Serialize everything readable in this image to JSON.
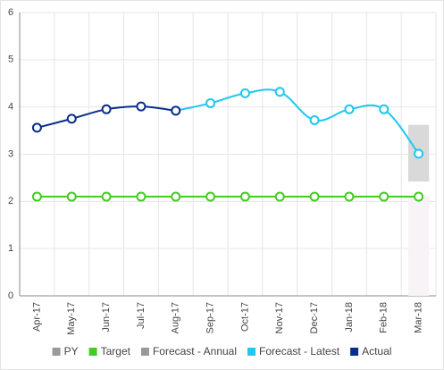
{
  "chart_data": {
    "type": "line",
    "categories": [
      "Apr-17",
      "May-17",
      "Jun-17",
      "Jul-17",
      "Aug-17",
      "Sep-17",
      "Oct-17",
      "Nov-17",
      "Dec-17",
      "Jan-18",
      "Feb-18",
      "Mar-18"
    ],
    "ylim": [
      0,
      6
    ],
    "yticks": [
      0,
      1,
      2,
      3,
      4,
      5,
      6
    ],
    "grid": true,
    "legend": "bottom",
    "series": [
      {
        "name": "PY",
        "color": "#999999",
        "bar_color": "#f7f3f7",
        "kind": "bar",
        "values": [
          null,
          null,
          null,
          null,
          null,
          null,
          null,
          null,
          null,
          null,
          null,
          2.1
        ]
      },
      {
        "name": "Target",
        "color": "#44cc22",
        "kind": "line",
        "values": [
          2.1,
          2.1,
          2.1,
          2.1,
          2.1,
          2.1,
          2.1,
          2.1,
          2.1,
          2.1,
          2.1,
          2.1
        ]
      },
      {
        "name": "Forecast - Annual",
        "color": "#999999",
        "bar_color": "#d9d9d9",
        "kind": "range",
        "values": [
          null,
          null,
          null,
          null,
          null,
          null,
          null,
          null,
          null,
          null,
          null,
          3.62
        ],
        "low": [
          null,
          null,
          null,
          null,
          null,
          null,
          null,
          null,
          null,
          null,
          null,
          2.42
        ]
      },
      {
        "name": "Forecast - Latest",
        "color": "#1ec8ee",
        "kind": "line",
        "values": [
          null,
          null,
          null,
          null,
          3.92,
          4.08,
          4.29,
          4.32,
          3.72,
          3.95,
          3.95,
          3.01
        ]
      },
      {
        "name": "Actual",
        "color": "#0a2e8c",
        "kind": "line",
        "values": [
          3.56,
          3.75,
          3.95,
          4.01,
          3.92,
          null,
          null,
          null,
          null,
          null,
          null,
          null
        ]
      }
    ]
  }
}
